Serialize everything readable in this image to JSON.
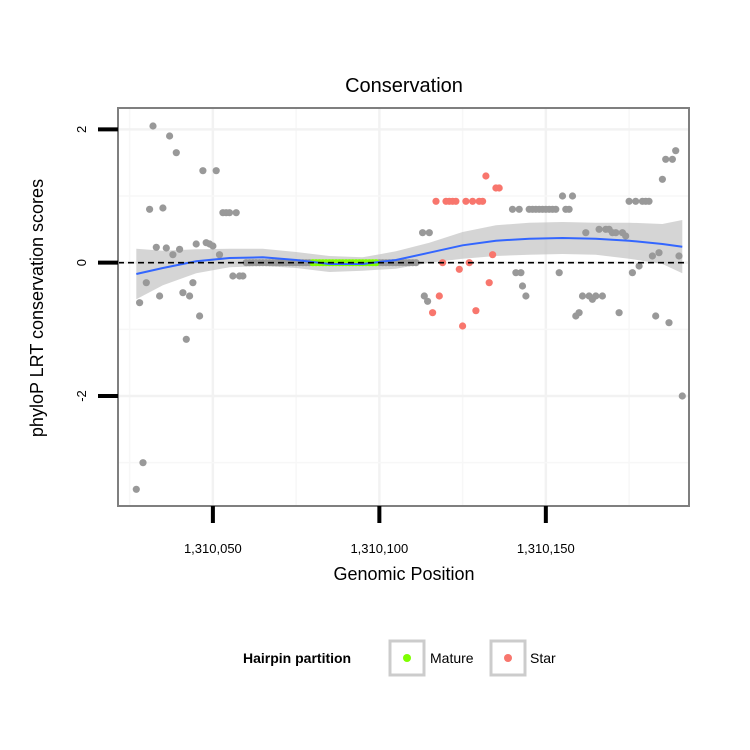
{
  "chart_data": {
    "type": "scatter",
    "title": "Conservation",
    "xlabel": "Genomic Position",
    "ylabel": "phyloP LRT conservation scores",
    "xlim": [
      1310021.5,
      1310193
    ],
    "ylim": [
      -3.65,
      2.32
    ],
    "x_ticks": [
      1310050,
      1310100,
      1310150
    ],
    "x_tick_labels": [
      "1,310,050",
      "1,310,100",
      "1,310,150"
    ],
    "y_ticks": [
      2,
      0,
      -2
    ],
    "y_tick_labels": [
      "2",
      "0",
      "-2"
    ],
    "reference_line": {
      "y": 0,
      "style": "dashed"
    },
    "legend": {
      "title": "Hairpin partition",
      "position": "bottom",
      "entries": [
        {
          "label": "Mature",
          "color": "#7fff00"
        },
        {
          "label": "Star",
          "color": "#f8766d"
        }
      ]
    },
    "colors": {
      "other": "#999999",
      "Mature": "#7fff00",
      "Star": "#f8766d",
      "smooth": "#3366ff",
      "ribbon": "#bfbfbf"
    },
    "series": [
      {
        "name": "other",
        "points": [
          [
            1310027,
            -3.4
          ],
          [
            1310028,
            -0.6
          ],
          [
            1310029,
            -3.0
          ],
          [
            1310030,
            -0.3
          ],
          [
            1310031,
            0.8
          ],
          [
            1310032,
            2.05
          ],
          [
            1310033,
            0.23
          ],
          [
            1310034,
            -0.5
          ],
          [
            1310035,
            0.82
          ],
          [
            1310036,
            0.22
          ],
          [
            1310037,
            1.9
          ],
          [
            1310038,
            0.12
          ],
          [
            1310039,
            1.65
          ],
          [
            1310040,
            0.2
          ],
          [
            1310041,
            -0.45
          ],
          [
            1310042,
            -1.15
          ],
          [
            1310043,
            -0.5
          ],
          [
            1310044,
            -0.3
          ],
          [
            1310045,
            0.28
          ],
          [
            1310046,
            -0.8
          ],
          [
            1310047,
            1.38
          ],
          [
            1310048,
            0.3
          ],
          [
            1310049,
            0.28
          ],
          [
            1310050,
            0.25
          ],
          [
            1310051,
            1.38
          ],
          [
            1310052,
            0.12
          ],
          [
            1310053,
            0.75
          ],
          [
            1310054,
            0.75
          ],
          [
            1310055,
            0.75
          ],
          [
            1310056,
            -0.2
          ],
          [
            1310057,
            0.75
          ],
          [
            1310058,
            -0.2
          ],
          [
            1310059,
            -0.2
          ],
          [
            1310060,
            0.0
          ],
          [
            1310061,
            0.0
          ],
          [
            1310062,
            0.0
          ],
          [
            1310063,
            0.0
          ],
          [
            1310064,
            0.0
          ],
          [
            1310065,
            0.0
          ],
          [
            1310066,
            0.0
          ],
          [
            1310067,
            0.0
          ],
          [
            1310068,
            0.0
          ],
          [
            1310069,
            0.0
          ],
          [
            1310070,
            0.0
          ],
          [
            1310071,
            0.0
          ],
          [
            1310072,
            0.0
          ],
          [
            1310073,
            0.0
          ],
          [
            1310074,
            0.0
          ],
          [
            1310075,
            0.0
          ],
          [
            1310076,
            0.0
          ],
          [
            1310077,
            0.0
          ],
          [
            1310078,
            0.0
          ],
          [
            1310079,
            0.0
          ],
          [
            1310100,
            0.0
          ],
          [
            1310101,
            0.0
          ],
          [
            1310102,
            0.0
          ],
          [
            1310103,
            0.0
          ],
          [
            1310104,
            0.0
          ],
          [
            1310105,
            0.0
          ],
          [
            1310106,
            0.0
          ],
          [
            1310107,
            0.0
          ],
          [
            1310108,
            0.0
          ],
          [
            1310109,
            0.0
          ],
          [
            1310110,
            0.0
          ],
          [
            1310111,
            0.0
          ],
          [
            1310113,
            0.45
          ],
          [
            1310113.5,
            -0.5
          ],
          [
            1310114.5,
            -0.58
          ],
          [
            1310115,
            0.45
          ],
          [
            1310140,
            0.8
          ],
          [
            1310141,
            -0.15
          ],
          [
            1310142,
            0.8
          ],
          [
            1310142.5,
            -0.15
          ],
          [
            1310143,
            -0.35
          ],
          [
            1310144,
            -0.5
          ],
          [
            1310145,
            0.8
          ],
          [
            1310146,
            0.8
          ],
          [
            1310147,
            0.8
          ],
          [
            1310148,
            0.8
          ],
          [
            1310149,
            0.8
          ],
          [
            1310150,
            0.8
          ],
          [
            1310151,
            0.8
          ],
          [
            1310152,
            0.8
          ],
          [
            1310153,
            0.8
          ],
          [
            1310154,
            -0.15
          ],
          [
            1310155,
            1.0
          ],
          [
            1310156,
            0.8
          ],
          [
            1310157,
            0.8
          ],
          [
            1310158,
            1.0
          ],
          [
            1310159,
            -0.8
          ],
          [
            1310160,
            -0.75
          ],
          [
            1310161,
            -0.5
          ],
          [
            1310162,
            0.45
          ],
          [
            1310163,
            -0.5
          ],
          [
            1310164,
            -0.55
          ],
          [
            1310165,
            -0.5
          ],
          [
            1310166,
            0.5
          ],
          [
            1310167,
            -0.5
          ],
          [
            1310168,
            0.5
          ],
          [
            1310169,
            0.5
          ],
          [
            1310170,
            0.45
          ],
          [
            1310171,
            0.45
          ],
          [
            1310172,
            -0.75
          ],
          [
            1310173,
            0.45
          ],
          [
            1310174,
            0.4
          ],
          [
            1310175,
            0.92
          ],
          [
            1310176,
            -0.15
          ],
          [
            1310177,
            0.92
          ],
          [
            1310178,
            -0.05
          ],
          [
            1310179,
            0.92
          ],
          [
            1310180,
            0.92
          ],
          [
            1310181,
            0.92
          ],
          [
            1310182,
            0.1
          ],
          [
            1310183,
            -0.8
          ],
          [
            1310184,
            0.15
          ],
          [
            1310185,
            1.25
          ],
          [
            1310186,
            1.55
          ],
          [
            1310187,
            -0.9
          ],
          [
            1310188,
            1.55
          ],
          [
            1310189,
            1.68
          ],
          [
            1310190,
            0.1
          ],
          [
            1310191,
            -2.0
          ]
        ]
      },
      {
        "name": "Mature",
        "points": [
          [
            1310080,
            0.0
          ],
          [
            1310081,
            0.0
          ],
          [
            1310082,
            0.0
          ],
          [
            1310083,
            0.0
          ],
          [
            1310084,
            0.0
          ],
          [
            1310085,
            0.0
          ],
          [
            1310086,
            0.0
          ],
          [
            1310087,
            0.0
          ],
          [
            1310088,
            0.0
          ],
          [
            1310089,
            0.0
          ],
          [
            1310090,
            0.0
          ],
          [
            1310091,
            0.0
          ],
          [
            1310092,
            0.0
          ],
          [
            1310093,
            0.0
          ],
          [
            1310094,
            0.0
          ],
          [
            1310095,
            0.0
          ],
          [
            1310096,
            0.0
          ],
          [
            1310097,
            0.0
          ],
          [
            1310098,
            0.0
          ],
          [
            1310099,
            0.0
          ]
        ]
      },
      {
        "name": "Star",
        "points": [
          [
            1310116,
            -0.75
          ],
          [
            1310117,
            0.92
          ],
          [
            1310118,
            -0.5
          ],
          [
            1310119,
            0.0
          ],
          [
            1310120,
            0.92
          ],
          [
            1310121,
            0.92
          ],
          [
            1310122,
            0.92
          ],
          [
            1310123,
            0.92
          ],
          [
            1310124,
            -0.1
          ],
          [
            1310125,
            -0.95
          ],
          [
            1310126,
            0.92
          ],
          [
            1310127,
            0.0
          ],
          [
            1310128,
            0.92
          ],
          [
            1310129,
            -0.72
          ],
          [
            1310130,
            0.92
          ],
          [
            1310131,
            0.92
          ],
          [
            1310132,
            1.3
          ],
          [
            1310133,
            -0.3
          ],
          [
            1310134,
            0.12
          ],
          [
            1310135,
            1.12
          ],
          [
            1310136,
            1.12
          ]
        ]
      }
    ],
    "smooth": {
      "x": [
        1310027,
        1310035,
        1310045,
        1310055,
        1310065,
        1310075,
        1310085,
        1310095,
        1310105,
        1310115,
        1310125,
        1310135,
        1310145,
        1310155,
        1310165,
        1310175,
        1310185,
        1310191
      ],
      "y": [
        -0.17,
        -0.08,
        0.02,
        0.07,
        0.08,
        0.04,
        -0.02,
        -0.02,
        0.04,
        0.15,
        0.26,
        0.33,
        0.36,
        0.37,
        0.36,
        0.33,
        0.28,
        0.24
      ],
      "lower": [
        -0.55,
        -0.34,
        -0.16,
        -0.07,
        -0.05,
        -0.08,
        -0.14,
        -0.12,
        -0.09,
        0.0,
        0.06,
        0.1,
        0.12,
        0.13,
        0.12,
        0.06,
        -0.02,
        -0.16
      ],
      "upper": [
        0.21,
        0.18,
        0.2,
        0.21,
        0.21,
        0.16,
        0.1,
        0.08,
        0.17,
        0.3,
        0.46,
        0.56,
        0.6,
        0.61,
        0.6,
        0.6,
        0.58,
        0.64
      ]
    }
  }
}
